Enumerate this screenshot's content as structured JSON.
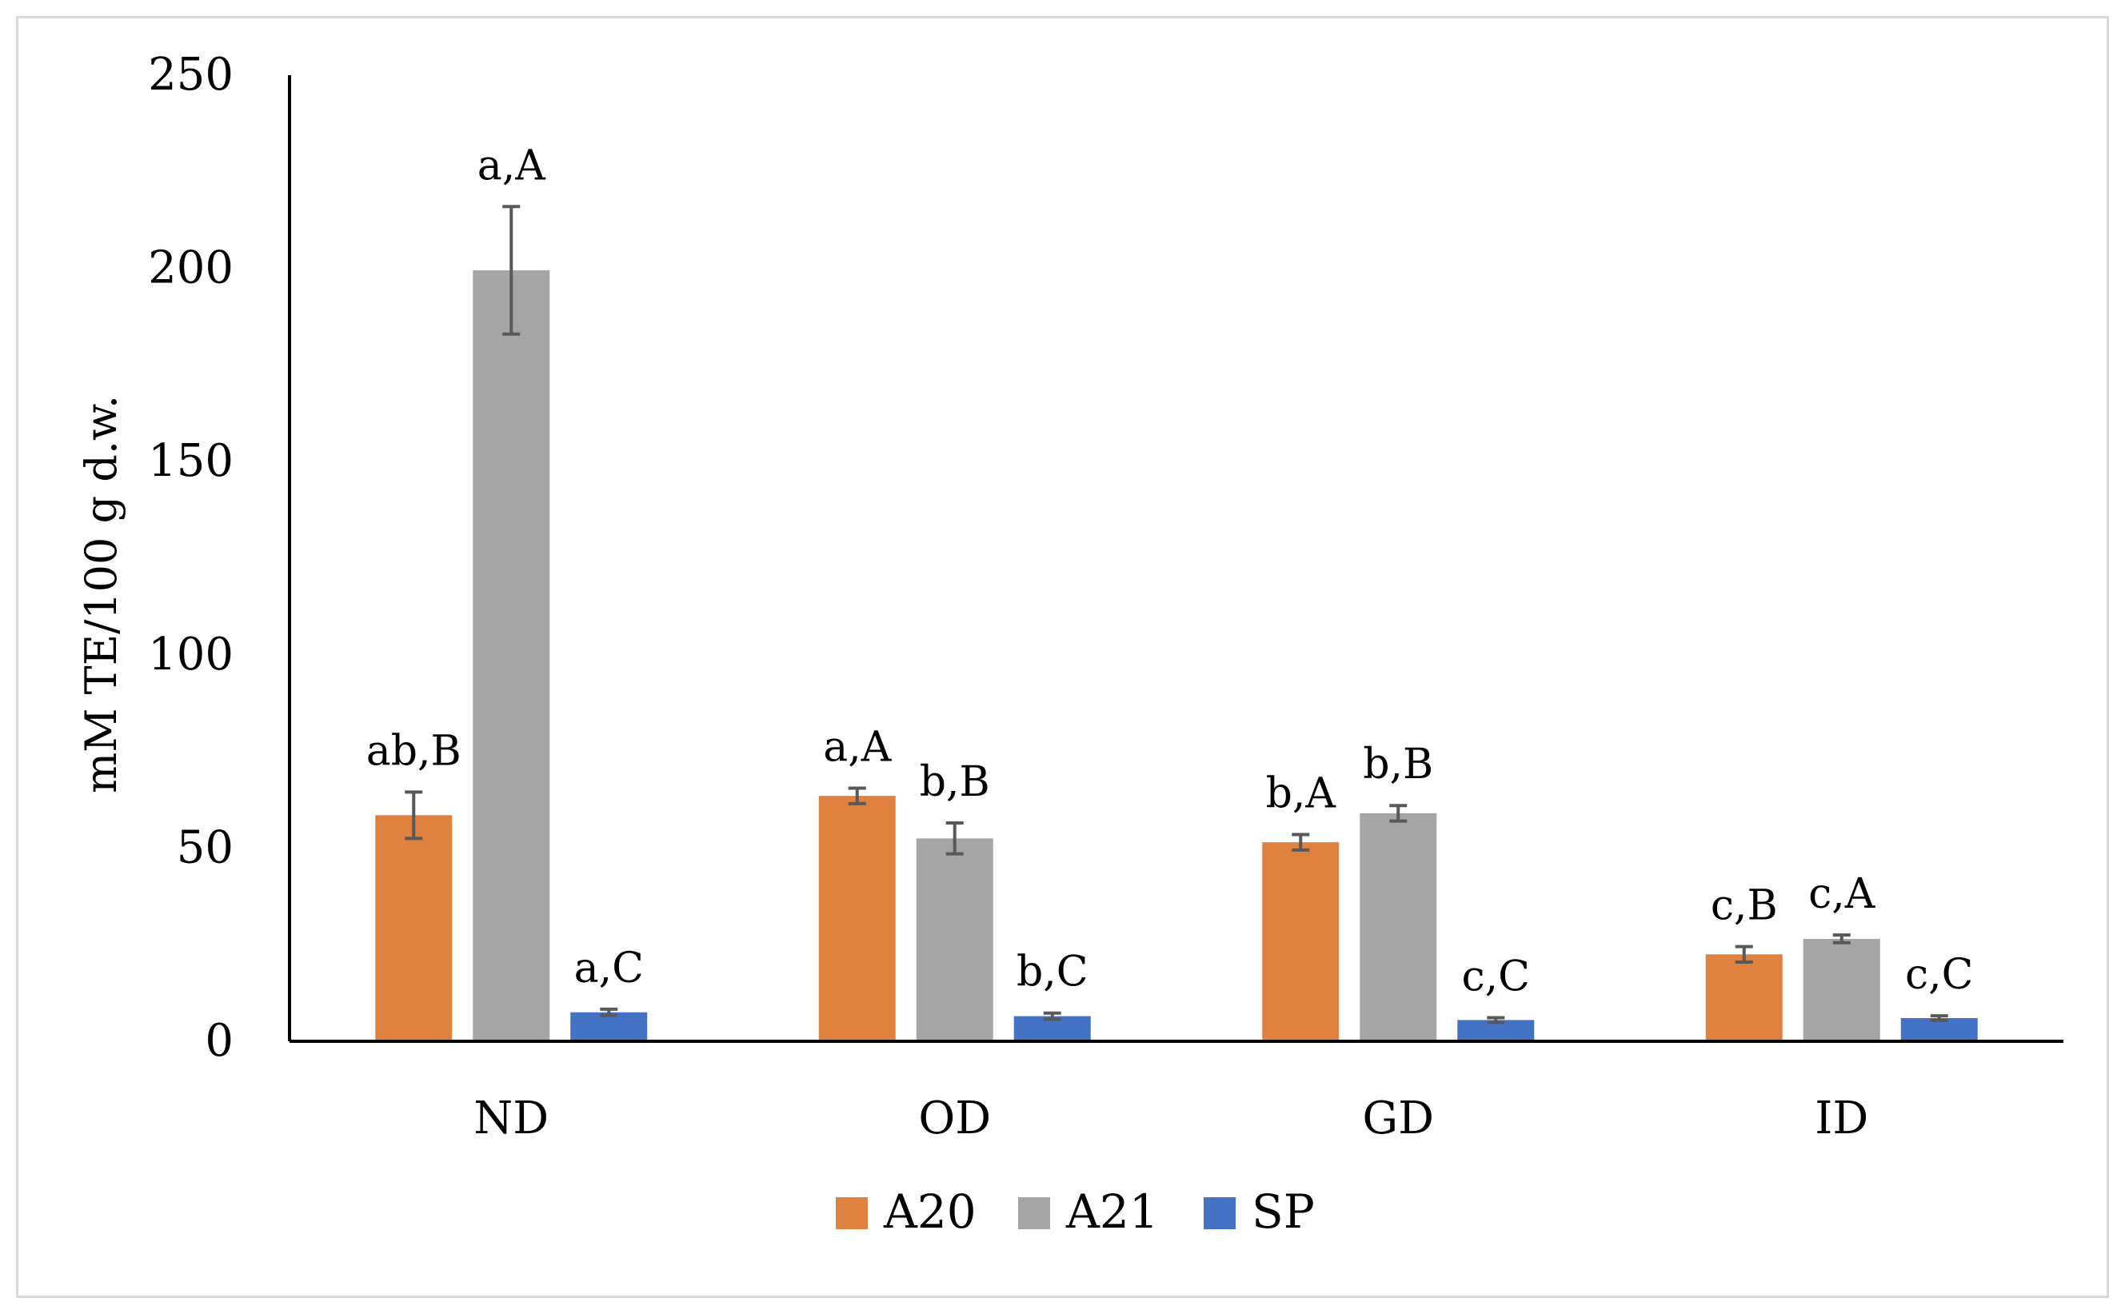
{
  "chart_data": {
    "type": "bar",
    "title": "",
    "xlabel": "",
    "ylabel": "mM  TE/100 g d.w.",
    "ylim": [
      0,
      250
    ],
    "yticks": [
      0,
      50,
      100,
      150,
      200,
      250
    ],
    "grid": false,
    "legend_position": "bottom",
    "categories": [
      "ND",
      "OD",
      "GD",
      "ID"
    ],
    "series": [
      {
        "name": "A20",
        "color": "#E0823F",
        "values": [
          58.5,
          63.5,
          51.5,
          22.5
        ],
        "errors": [
          6.0,
          2.0,
          2.0,
          2.0
        ],
        "labels": [
          "ab,B",
          "a,A",
          "b,A",
          "c,B"
        ]
      },
      {
        "name": "A21",
        "color": "#A5A5A5",
        "values": [
          199.5,
          52.5,
          59.0,
          26.5
        ],
        "errors": [
          16.5,
          4.0,
          2.0,
          1.0
        ],
        "labels": [
          "a,A",
          "b,B",
          "b,B",
          "c,A"
        ]
      },
      {
        "name": "SP",
        "color": "#4472C4",
        "values": [
          7.5,
          6.5,
          5.5,
          6.0
        ],
        "errors": [
          0.8,
          0.8,
          0.6,
          0.6
        ],
        "labels": [
          "a,C",
          "b,C",
          "c,C",
          "c,C"
        ]
      }
    ]
  }
}
